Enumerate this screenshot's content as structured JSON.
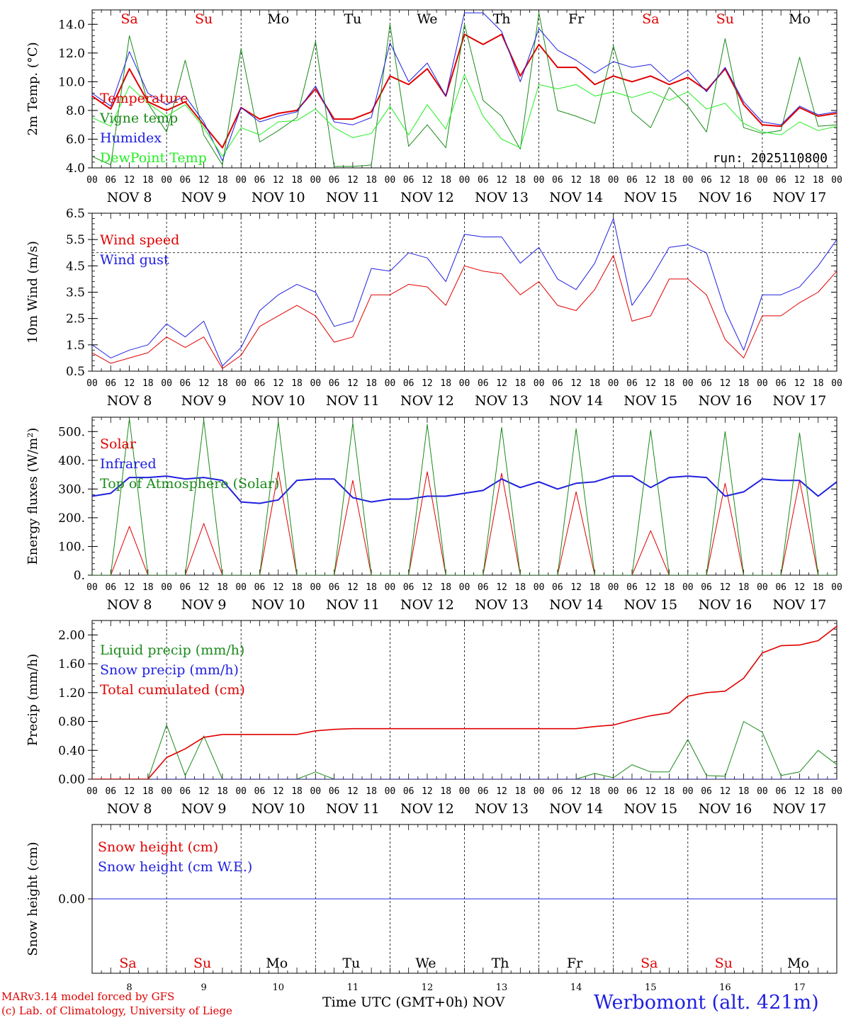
{
  "footer": {
    "credit_line1": "MARv3.14 model forced by GFS",
    "credit_line2": "(c) Lab. of Climatology, University of Liege",
    "xaxis_title": "Time UTC (GMT+0h)",
    "month_label": "NOV",
    "station": "Werbomont (alt. 421m)"
  },
  "chart_data": [
    {
      "type": "line",
      "title": "2m Temperature",
      "ylabel": "2m Temp. (°C)",
      "ylim": [
        4.0,
        15.0
      ],
      "yticks": [
        "4.0",
        "6.0",
        "8.0",
        "10.0",
        "12.0",
        "14.0"
      ],
      "ytick_values": [
        4,
        6,
        8,
        10,
        12,
        14
      ],
      "hline": null,
      "annotation": "run: 2025110800",
      "legend_position": "top-left",
      "x_hours": [
        0,
        6,
        12,
        18,
        24,
        30,
        36,
        42,
        48,
        54,
        60,
        66,
        72,
        78,
        84,
        90,
        96,
        102,
        108,
        114,
        120,
        126,
        132,
        138,
        144,
        150,
        156,
        162,
        168,
        174,
        180,
        186,
        192,
        198,
        204,
        210,
        216,
        222,
        228,
        234,
        240
      ],
      "series": [
        {
          "name": "Temperature",
          "color": "#e00000",
          "width": 2,
          "values": [
            9.0,
            8.1,
            10.9,
            8.6,
            8.0,
            8.6,
            7.0,
            5.4,
            8.2,
            7.4,
            7.8,
            8.0,
            9.5,
            7.4,
            7.4,
            7.9,
            10.4,
            9.8,
            10.9,
            9.0,
            13.3,
            12.6,
            13.3,
            10.4,
            12.6,
            11.0,
            11.0,
            9.8,
            10.4,
            10.0,
            10.4,
            9.8,
            10.3,
            9.4,
            10.9,
            8.4,
            7.0,
            6.9,
            8.2,
            7.6,
            7.8
          ]
        },
        {
          "name": "Vigne temp",
          "color": "#1a8a1a",
          "width": 1,
          "values": [
            4.8,
            4.2,
            13.2,
            8.5,
            6.5,
            11.5,
            6.3,
            4.2,
            12.3,
            5.8,
            6.6,
            7.5,
            12.8,
            4.1,
            4.1,
            4.2,
            14.0,
            5.5,
            7.0,
            5.4,
            14.0,
            8.7,
            7.6,
            5.3,
            14.8,
            8.0,
            7.6,
            7.1,
            12.5,
            7.9,
            6.8,
            9.6,
            8.3,
            6.5,
            13.0,
            6.8,
            6.4,
            6.6,
            11.7,
            6.9,
            7.0
          ]
        },
        {
          "name": "Humidex",
          "color": "#2020e0",
          "width": 1,
          "values": [
            9.2,
            8.3,
            12.1,
            9.2,
            8.4,
            9.0,
            7.2,
            4.5,
            8.2,
            7.2,
            7.6,
            7.9,
            9.7,
            7.2,
            7.0,
            7.5,
            12.7,
            10.0,
            11.3,
            9.0,
            14.8,
            14.8,
            13.5,
            10.0,
            13.7,
            12.2,
            11.5,
            10.6,
            11.4,
            11.0,
            11.2,
            10.0,
            10.8,
            9.3,
            11.0,
            8.6,
            7.2,
            7.0,
            8.3,
            7.7,
            7.9
          ]
        },
        {
          "name": "DewPoint Temp",
          "color": "#22ee22",
          "width": 1,
          "values": [
            7.5,
            6.9,
            9.7,
            8.5,
            7.6,
            8.4,
            6.8,
            4.8,
            6.8,
            6.3,
            7.2,
            7.3,
            8.1,
            6.8,
            6.1,
            6.4,
            8.3,
            6.3,
            8.4,
            6.7,
            10.5,
            7.6,
            6.0,
            5.4,
            9.8,
            9.5,
            9.8,
            9.0,
            9.3,
            8.9,
            9.3,
            8.7,
            9.3,
            8.1,
            8.5,
            7.1,
            6.5,
            6.3,
            7.2,
            6.6,
            6.9
          ]
        }
      ]
    },
    {
      "type": "line",
      "title": "10m Wind",
      "ylabel": "10m Wind (m/s)",
      "ylim": [
        0.5,
        6.5
      ],
      "yticks": [
        "0.5",
        "1.5",
        "2.5",
        "3.5",
        "4.5",
        "5.5",
        "6.5"
      ],
      "ytick_values": [
        0.5,
        1.5,
        2.5,
        3.5,
        4.5,
        5.5,
        6.5
      ],
      "hline": 5.0,
      "annotation": "",
      "legend_position": "top-left",
      "x_hours": [
        0,
        6,
        12,
        18,
        24,
        30,
        36,
        42,
        48,
        54,
        60,
        66,
        72,
        78,
        84,
        90,
        96,
        102,
        108,
        114,
        120,
        126,
        132,
        138,
        144,
        150,
        156,
        162,
        168,
        174,
        180,
        186,
        192,
        198,
        204,
        210,
        216,
        222,
        228,
        234,
        240
      ],
      "series": [
        {
          "name": "Wind speed",
          "color": "#e00000",
          "width": 1,
          "values": [
            1.2,
            0.8,
            1.0,
            1.2,
            1.8,
            1.4,
            1.8,
            0.6,
            1.1,
            2.2,
            2.6,
            3.0,
            2.6,
            1.6,
            1.8,
            3.4,
            3.4,
            3.8,
            3.7,
            3.0,
            4.5,
            4.3,
            4.2,
            3.4,
            3.9,
            3.0,
            2.8,
            3.6,
            4.9,
            2.4,
            2.6,
            4.0,
            4.0,
            3.4,
            1.7,
            1.0,
            2.6,
            2.6,
            3.1,
            3.5,
            4.3
          ]
        },
        {
          "name": "Wind gust",
          "color": "#2020e0",
          "width": 1,
          "values": [
            1.5,
            1.0,
            1.3,
            1.5,
            2.3,
            1.8,
            2.4,
            0.7,
            1.4,
            2.8,
            3.4,
            3.8,
            3.5,
            2.2,
            2.4,
            4.4,
            4.3,
            5.0,
            4.8,
            3.9,
            5.7,
            5.6,
            5.6,
            4.6,
            5.2,
            4.0,
            3.6,
            4.6,
            6.3,
            3.0,
            4.0,
            5.2,
            5.3,
            5.0,
            2.8,
            1.3,
            3.4,
            3.4,
            3.7,
            4.5,
            5.5
          ]
        }
      ]
    },
    {
      "type": "line",
      "title": "Energy fluxes",
      "ylabel": "Energy fluxes (W/m²)",
      "ylim": [
        0,
        550
      ],
      "yticks": [
        "0.",
        "100.",
        "200.",
        "300.",
        "400.",
        "500."
      ],
      "ytick_values": [
        0,
        100,
        200,
        300,
        400,
        500
      ],
      "hline": null,
      "annotation": "",
      "legend_position": "top-left",
      "x_hours": [
        0,
        6,
        12,
        18,
        24,
        30,
        36,
        42,
        48,
        54,
        60,
        66,
        72,
        78,
        84,
        90,
        96,
        102,
        108,
        114,
        120,
        126,
        132,
        138,
        144,
        150,
        156,
        162,
        168,
        174,
        180,
        186,
        192,
        198,
        204,
        210,
        216,
        222,
        228,
        234,
        240
      ],
      "series": [
        {
          "name": "Solar",
          "color": "#e00000",
          "width": 1,
          "values": [
            0,
            0,
            170,
            0,
            0,
            0,
            180,
            0,
            0,
            0,
            360,
            0,
            0,
            0,
            330,
            0,
            0,
            0,
            360,
            0,
            0,
            0,
            355,
            0,
            0,
            0,
            290,
            0,
            0,
            0,
            155,
            0,
            0,
            0,
            320,
            0,
            0,
            0,
            330,
            0,
            0
          ]
        },
        {
          "name": "Infrared",
          "color": "#2020e0",
          "width": 2,
          "values": [
            275,
            285,
            340,
            340,
            345,
            335,
            340,
            330,
            255,
            250,
            262,
            330,
            335,
            335,
            270,
            255,
            265,
            265,
            275,
            275,
            285,
            295,
            335,
            305,
            325,
            300,
            320,
            325,
            345,
            345,
            305,
            340,
            345,
            340,
            275,
            290,
            335,
            330,
            330,
            275,
            325
          ]
        },
        {
          "name": "Top of Atmosphere (Solar)",
          "color": "#1a8a1a",
          "width": 1,
          "values": [
            0,
            0,
            545,
            0,
            0,
            0,
            540,
            0,
            0,
            0,
            535,
            0,
            0,
            0,
            530,
            0,
            0,
            0,
            525,
            0,
            0,
            0,
            515,
            0,
            0,
            0,
            510,
            0,
            0,
            0,
            505,
            0,
            0,
            0,
            500,
            0,
            0,
            0,
            495,
            0,
            0
          ]
        }
      ]
    },
    {
      "type": "line",
      "title": "Precip",
      "ylabel": "Precip (mm/h)",
      "ylim": [
        0.0,
        2.2
      ],
      "yticks": [
        "0.00",
        "0.40",
        "0.80",
        "1.20",
        "1.60",
        "2.00"
      ],
      "ytick_values": [
        0.0,
        0.4,
        0.8,
        1.2,
        1.6,
        2.0
      ],
      "hline": null,
      "annotation": "",
      "legend_position": "top-left",
      "x_hours": [
        0,
        6,
        12,
        18,
        24,
        30,
        36,
        42,
        48,
        54,
        60,
        66,
        72,
        78,
        84,
        90,
        96,
        102,
        108,
        114,
        120,
        126,
        132,
        138,
        144,
        150,
        156,
        162,
        168,
        174,
        180,
        186,
        192,
        198,
        204,
        210,
        216,
        222,
        228,
        234,
        240
      ],
      "series": [
        {
          "name": "Liquid precip (mm/h)",
          "color": "#1a8a1a",
          "width": 1,
          "values": [
            0,
            0,
            0,
            0,
            0.75,
            0.05,
            0.6,
            0.0,
            0,
            0,
            0,
            0,
            0.1,
            0.0,
            0,
            0,
            0,
            0,
            0,
            0,
            0,
            0,
            0,
            0,
            0,
            0,
            0,
            0.08,
            0.02,
            0.2,
            0.1,
            0.1,
            0.55,
            0.05,
            0.04,
            0.8,
            0.65,
            0.05,
            0.1,
            0.4,
            0.2
          ]
        },
        {
          "name": "Snow precip (mm/h)",
          "color": "#2020e0",
          "width": 1,
          "values": [
            0,
            0,
            0,
            0,
            0,
            0,
            0,
            0,
            0,
            0,
            0,
            0,
            0,
            0,
            0,
            0,
            0,
            0,
            0,
            0,
            0,
            0,
            0,
            0,
            0,
            0,
            0,
            0,
            0,
            0,
            0,
            0,
            0,
            0,
            0,
            0,
            0,
            0,
            0,
            0,
            0
          ]
        },
        {
          "name": "Total cumulated (cm)",
          "color": "#e00000",
          "width": 1.6,
          "values": [
            0,
            0,
            0,
            0,
            0.3,
            0.42,
            0.58,
            0.62,
            0.62,
            0.62,
            0.62,
            0.62,
            0.67,
            0.69,
            0.7,
            0.7,
            0.7,
            0.7,
            0.7,
            0.7,
            0.7,
            0.7,
            0.7,
            0.7,
            0.7,
            0.7,
            0.7,
            0.73,
            0.75,
            0.82,
            0.88,
            0.92,
            1.15,
            1.2,
            1.22,
            1.4,
            1.75,
            1.85,
            1.86,
            1.92,
            2.12
          ]
        }
      ]
    },
    {
      "type": "line",
      "title": "Snow height",
      "ylabel": "Snow height (cm)",
      "ylim": [
        -1.0,
        1.0
      ],
      "yticks": [
        "0.00"
      ],
      "ytick_values": [
        0.0
      ],
      "hline": null,
      "annotation": "",
      "legend_position": "top-left",
      "x_hours": [
        0,
        240
      ],
      "series": [
        {
          "name": "Snow height (cm)",
          "color": "#e00000",
          "width": 1,
          "values": [
            0,
            0
          ]
        },
        {
          "name": "Snow height (cm W.E.)",
          "color": "#2020e0",
          "width": 1,
          "values": [
            0,
            0
          ]
        }
      ]
    }
  ],
  "day_names": [
    "Sa",
    "Su",
    "Mo",
    "Tu",
    "We",
    "Th",
    "Fr",
    "Sa",
    "Su",
    "Mo"
  ],
  "day_colors": [
    "#e00000",
    "#e00000",
    "#000000",
    "#000000",
    "#000000",
    "#000000",
    "#000000",
    "#e00000",
    "#e00000",
    "#000000"
  ],
  "hour_ticks": [
    "00",
    "06",
    "12",
    "18"
  ],
  "end_hour_tick": "00",
  "date_labels": [
    "NOV  8",
    "NOV  9",
    "NOV 10",
    "NOV 11",
    "NOV 12",
    "NOV 13",
    "NOV 14",
    "NOV 15",
    "NOV 16",
    "NOV 17"
  ],
  "bottom_day_numbers": [
    "8",
    "9",
    "10",
    "11",
    "12",
    "13",
    "14",
    "15",
    "16",
    "17"
  ]
}
